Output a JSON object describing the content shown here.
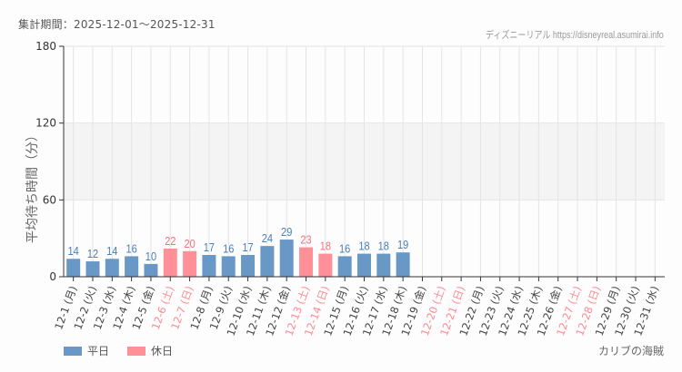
{
  "header": {
    "period": "集計期間：2025-12-01～2025-12-31",
    "credit": "ディズニーリアル https://disneyreal.asumirai.info"
  },
  "footer": {
    "attraction": "カリブの海賊"
  },
  "legend": [
    {
      "label": "平日",
      "color": "#6a98c6"
    },
    {
      "label": "休日",
      "color": "#ff9098"
    }
  ],
  "colors": {
    "weekday_bar": "#6a98c6",
    "holiday_bar": "#ff9098",
    "weekday_label": "#4a7fb5",
    "holiday_label": "#f2737e",
    "weekday_tick": "#444444",
    "holiday_tick": "#ff8a94",
    "band": "#f3f4f3",
    "grid": "#e4e4e4"
  },
  "chart_data": {
    "type": "bar",
    "title": "",
    "xlabel": "",
    "ylabel": "平均待ち時間（分）",
    "ylim": [
      0,
      180
    ],
    "yticks": [
      0,
      60,
      120,
      180
    ],
    "grid": true,
    "shaded_band": [
      60,
      120
    ],
    "legend_position": "bottom-left",
    "categories": [
      "12-1 (月)",
      "12-2 (火)",
      "12-3 (水)",
      "12-4 (木)",
      "12-5 (金)",
      "12-6 (土)",
      "12-7 (日)",
      "12-8 (月)",
      "12-9 (火)",
      "12-10 (水)",
      "12-11 (木)",
      "12-12 (金)",
      "12-13 (土)",
      "12-14 (日)",
      "12-15 (月)",
      "12-16 (火)",
      "12-17 (水)",
      "12-18 (木)",
      "12-19 (金)",
      "12-20 (土)",
      "12-21 (日)",
      "12-22 (月)",
      "12-23 (火)",
      "12-24 (水)",
      "12-25 (木)",
      "12-26 (金)",
      "12-27 (土)",
      "12-28 (日)",
      "12-29 (月)",
      "12-30 (火)",
      "12-31 (水)"
    ],
    "holiday": [
      false,
      false,
      false,
      false,
      false,
      true,
      true,
      false,
      false,
      false,
      false,
      false,
      true,
      true,
      false,
      false,
      false,
      false,
      false,
      true,
      true,
      false,
      false,
      false,
      false,
      false,
      true,
      true,
      false,
      false,
      false
    ],
    "values": [
      14,
      12,
      14,
      16,
      10,
      22,
      20,
      17,
      16,
      17,
      24,
      29,
      23,
      18,
      16,
      18,
      18,
      19,
      null,
      null,
      null,
      null,
      null,
      null,
      null,
      null,
      null,
      null,
      null,
      null,
      null
    ],
    "series": [
      {
        "name": "平日",
        "color": "#6a98c6"
      },
      {
        "name": "休日",
        "color": "#ff9098"
      }
    ]
  }
}
